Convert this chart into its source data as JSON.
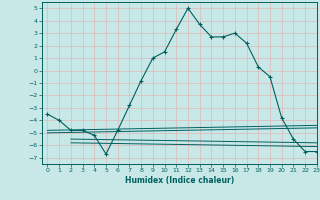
{
  "xlabel": "Humidex (Indice chaleur)",
  "background_color": "#c8e8e8",
  "grid_color": "#e0b8b8",
  "line_color": "#006060",
  "xlim": [
    -0.5,
    23
  ],
  "ylim": [
    -7.5,
    5.5
  ],
  "xticks": [
    0,
    1,
    2,
    3,
    4,
    5,
    6,
    7,
    8,
    9,
    10,
    11,
    12,
    13,
    14,
    15,
    16,
    17,
    18,
    19,
    20,
    21,
    22,
    23
  ],
  "yticks": [
    5,
    4,
    3,
    2,
    1,
    0,
    -1,
    -2,
    -3,
    -4,
    -5,
    -6,
    -7
  ],
  "main_line": [
    [
      0,
      -3.5
    ],
    [
      1,
      -4.0
    ],
    [
      2,
      -4.8
    ],
    [
      3,
      -4.8
    ],
    [
      4,
      -5.2
    ],
    [
      5,
      -6.7
    ],
    [
      6,
      -4.8
    ],
    [
      7,
      -2.8
    ],
    [
      8,
      -0.8
    ],
    [
      9,
      1.0
    ],
    [
      10,
      1.5
    ],
    [
      11,
      3.3
    ],
    [
      12,
      5.0
    ],
    [
      13,
      3.7
    ],
    [
      14,
      2.7
    ],
    [
      15,
      2.7
    ],
    [
      16,
      3.0
    ],
    [
      17,
      2.2
    ],
    [
      18,
      0.3
    ],
    [
      19,
      -0.5
    ],
    [
      20,
      -3.8
    ],
    [
      21,
      -5.5
    ],
    [
      22,
      -6.5
    ],
    [
      23,
      -6.5
    ]
  ],
  "flat_lines": [
    [
      [
        0,
        -4.8
      ],
      [
        23,
        -4.4
      ]
    ],
    [
      [
        0,
        -5.0
      ],
      [
        23,
        -4.6
      ]
    ],
    [
      [
        2,
        -5.5
      ],
      [
        23,
        -5.8
      ]
    ],
    [
      [
        2,
        -5.8
      ],
      [
        23,
        -6.1
      ]
    ]
  ]
}
